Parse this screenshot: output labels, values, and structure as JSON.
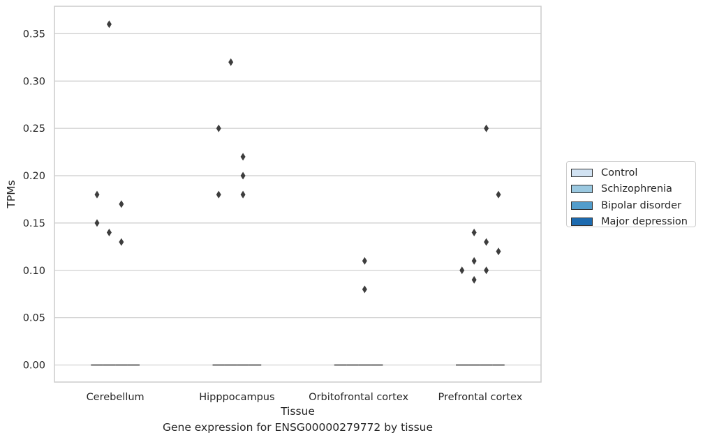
{
  "chart_data": {
    "type": "box",
    "caption": "Gene expression for ENSG00000279772 by tissue",
    "xlabel": "Tissue",
    "ylabel": "TPMs",
    "categories": [
      "Cerebellum",
      "Hipppocampus",
      "Orbitofrontal cortex",
      "Prefrontal cortex"
    ],
    "ylim": [
      -0.018,
      0.379
    ],
    "yticks": [
      "0.00",
      "0.05",
      "0.10",
      "0.15",
      "0.20",
      "0.25",
      "0.30",
      "0.35"
    ],
    "grid": "horizontal",
    "legend_position": "right",
    "series": [
      {
        "name": "Control",
        "color": "#d1e2f2"
      },
      {
        "name": "Schizophrenia",
        "color": "#9ac8e0"
      },
      {
        "name": "Bipolar disorder",
        "color": "#529dcc"
      },
      {
        "name": "Major depression",
        "color": "#1c6aaf"
      }
    ],
    "median": 0.0,
    "outliers": [
      {
        "category": "Cerebellum",
        "series": "Control",
        "values": [
          0.18,
          0.15
        ]
      },
      {
        "category": "Cerebellum",
        "series": "Schizophrenia",
        "values": [
          0.36,
          0.14
        ]
      },
      {
        "category": "Cerebellum",
        "series": "Bipolar disorder",
        "values": [
          0.17,
          0.13
        ]
      },
      {
        "category": "Hipppocampus",
        "series": "Control",
        "values": [
          0.25,
          0.18
        ]
      },
      {
        "category": "Hipppocampus",
        "series": "Schizophrenia",
        "values": [
          0.32
        ]
      },
      {
        "category": "Hipppocampus",
        "series": "Bipolar disorder",
        "values": [
          0.22,
          0.2,
          0.18
        ]
      },
      {
        "category": "Orbitofrontal cortex",
        "series": "Bipolar disorder",
        "values": [
          0.11,
          0.08
        ]
      },
      {
        "category": "Prefrontal cortex",
        "series": "Control",
        "values": [
          0.1
        ]
      },
      {
        "category": "Prefrontal cortex",
        "series": "Schizophrenia",
        "values": [
          0.14,
          0.11,
          0.09
        ]
      },
      {
        "category": "Prefrontal cortex",
        "series": "Bipolar disorder",
        "values": [
          0.25,
          0.13,
          0.1
        ]
      },
      {
        "category": "Prefrontal cortex",
        "series": "Major depression",
        "values": [
          0.18,
          0.12
        ]
      }
    ]
  }
}
